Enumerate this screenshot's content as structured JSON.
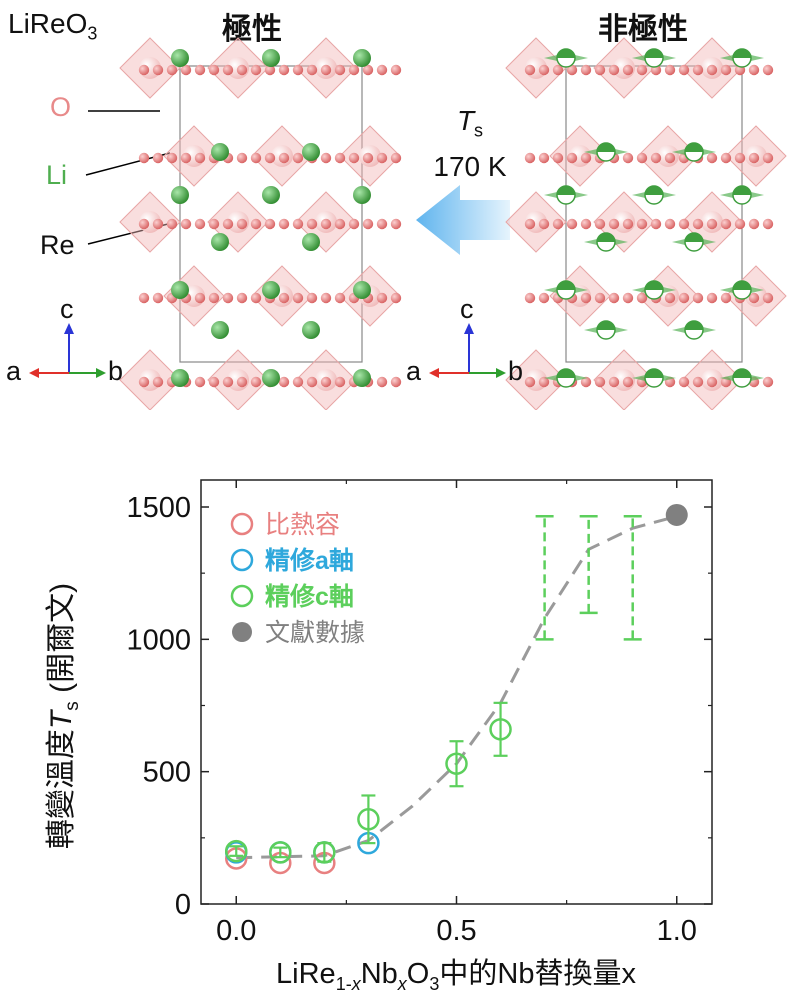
{
  "structure": {
    "compound": "LiReO",
    "compound_sub": "3",
    "polar_title": "極性",
    "nonpolar_title": "非極性",
    "atoms": {
      "O": "O",
      "Li": "Li",
      "Re": "Re"
    },
    "transition_symbol": "T",
    "transition_sub": "s",
    "transition_temp": "170 K",
    "axes": {
      "a": "a",
      "b": "b",
      "c": "c"
    },
    "colors": {
      "O": "#e88a8a",
      "Li": "#4fae4f",
      "Re": "#f3c9c9",
      "arrow": "#8cc8f2"
    }
  },
  "chart_data": {
    "type": "scatter",
    "ylabel_main": "轉變溫度",
    "ylabel_sym": "T",
    "ylabel_sub": "s",
    "ylabel_unit": "(開爾文)",
    "xlabel_parts": {
      "a": "LiRe",
      "b": "1-",
      "c": "x",
      "d": "Nb",
      "e": "x",
      "f": "O",
      "g": "3",
      "h": "中的Nb替換量x"
    },
    "xlim": [
      -0.08,
      1.08
    ],
    "ylim": [
      0,
      1500
    ],
    "xticks": [
      "0.0",
      "0.5",
      "1.0"
    ],
    "yticks": [
      "0",
      "500",
      "1000",
      "1500"
    ],
    "ytick_values": [
      0,
      500,
      1000,
      1500
    ],
    "xtick_values": [
      0.0,
      0.5,
      1.0
    ],
    "legend_position": "top-left",
    "series": [
      {
        "name": "比熱容",
        "color": "#e88080",
        "marker": "open-circle",
        "x": [
          0.0,
          0.1,
          0.2
        ],
        "y": [
          172,
          155,
          155
        ]
      },
      {
        "name": "精修a軸",
        "color": "#2ea8dc",
        "marker": "open-circle",
        "x": [
          0.0,
          0.1,
          0.2,
          0.3
        ],
        "y": [
          195,
          195,
          195,
          230
        ]
      },
      {
        "name": "精修c軸",
        "color": "#5ccf5c",
        "marker": "open-circle",
        "x": [
          0.0,
          0.1,
          0.2,
          0.3,
          0.5,
          0.6
        ],
        "y": [
          200,
          195,
          195,
          320,
          530,
          660
        ],
        "err": [
          18,
          18,
          35,
          90,
          85,
          100
        ]
      },
      {
        "name": "文獻數據",
        "color": "#808080",
        "marker": "filled-circle",
        "x": [
          1.0
        ],
        "y": [
          1470
        ]
      }
    ],
    "range_bars": {
      "color": "#5ccf5c",
      "x": [
        0.7,
        0.8,
        0.9
      ],
      "low": [
        1000,
        1100,
        1000
      ],
      "high": [
        1465,
        1465,
        1465
      ]
    },
    "guide_curve": {
      "x": [
        0.0,
        0.2,
        0.3,
        0.4,
        0.5,
        0.6,
        0.7,
        0.8,
        0.9,
        1.0
      ],
      "y": [
        175,
        182,
        240,
        370,
        530,
        760,
        1080,
        1340,
        1420,
        1465
      ]
    }
  }
}
